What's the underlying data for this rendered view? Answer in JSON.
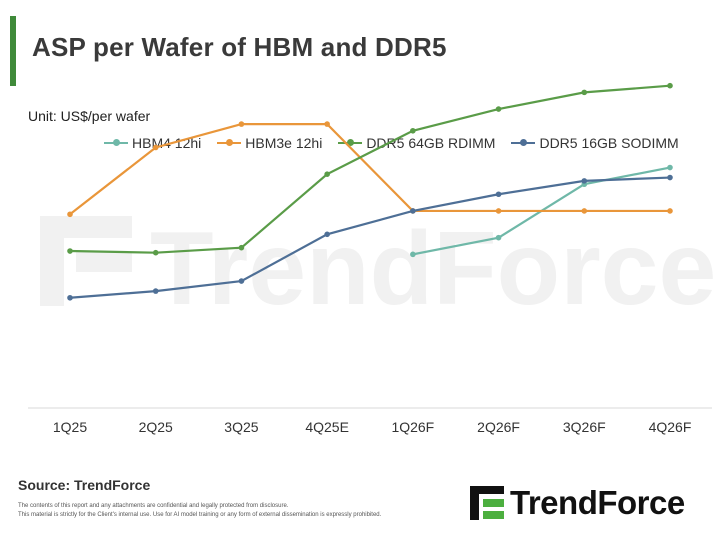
{
  "header": {
    "title": "ASP per Wafer of HBM and DDR5",
    "unit": "Unit: US$/per wafer"
  },
  "colors": {
    "accent_bar": "#3f8a3a",
    "HBM4 12hi": "#6fb8a8",
    "HBM3e 12hi": "#e9963a",
    "DDR5 64GB RDIMM": "#5a9c48",
    "DDR5 16GB SODIMM": "#4e6f96"
  },
  "chart_data": {
    "type": "line",
    "title": "ASP per Wafer of HBM and DDR5",
    "ylabel": "Unit: US$/per wafer",
    "categories": [
      "1Q25",
      "2Q25",
      "3Q25",
      "4Q25E",
      "1Q26F",
      "2Q26F",
      "3Q26F",
      "4Q26F"
    ],
    "ylim": [
      0,
      100
    ],
    "grid": false,
    "legend": "top",
    "series": [
      {
        "name": "HBM4 12hi",
        "values": [
          null,
          null,
          null,
          null,
          46,
          51,
          67,
          72
        ]
      },
      {
        "name": "HBM3e 12hi",
        "values": [
          58,
          78,
          85,
          85,
          59,
          59,
          59,
          59
        ]
      },
      {
        "name": "DDR5 64GB RDIMM",
        "values": [
          47,
          46.5,
          48,
          70,
          83,
          89.5,
          94.5,
          96.5
        ]
      },
      {
        "name": "DDR5 16GB SODIMM",
        "values": [
          33,
          35,
          38,
          52,
          59,
          64,
          68,
          69
        ]
      }
    ]
  },
  "footer": {
    "source": "Source: TrendForce",
    "disclaimer_1": "The contents of this report and any attachments are confidential and legally protected from disclosure.",
    "disclaimer_2": "This material is strictly for the Client's internal use. Use for AI model training or any form of external dissemination is expressly prohibited.",
    "logo_text": "TrendForce"
  },
  "watermark": {
    "text": "TrendForce"
  }
}
